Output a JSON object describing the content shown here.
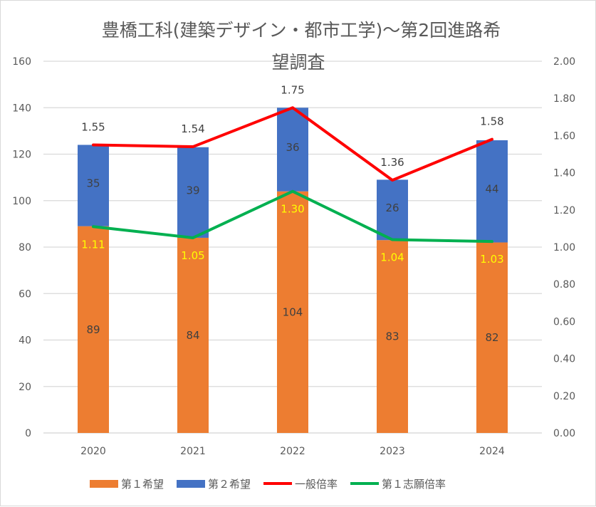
{
  "chart_data": {
    "type": "bar",
    "title": "豊橋工科(建築デザイン・都市工学)～第2回進路希望調査",
    "categories": [
      "2020",
      "2021",
      "2022",
      "2023",
      "2024"
    ],
    "series": [
      {
        "name": "第１希望",
        "kind": "bar",
        "axis": "left",
        "color": "#ED7D31",
        "label_color": "#404040",
        "values": [
          89,
          84,
          104,
          83,
          82
        ]
      },
      {
        "name": "第２希望",
        "kind": "bar",
        "axis": "left",
        "color": "#4472C4",
        "label_color": "#404040",
        "values": [
          35,
          39,
          36,
          26,
          44
        ]
      },
      {
        "name": "一般倍率",
        "kind": "line",
        "axis": "right",
        "color": "#FF0000",
        "label_color": "#404040",
        "labels": [
          "1.55",
          "1.54",
          "1.75",
          "1.36",
          "1.58"
        ],
        "values": [
          1.55,
          1.54,
          1.75,
          1.36,
          1.58
        ]
      },
      {
        "name": "第１志願倍率",
        "kind": "line",
        "axis": "right",
        "color": "#00B050",
        "label_color": "#FFFF00",
        "labels": [
          "1.11",
          "1.05",
          "1.30",
          "1.04",
          "1.03"
        ],
        "values": [
          1.11,
          1.05,
          1.3,
          1.04,
          1.03
        ]
      }
    ],
    "stacked": true,
    "ylim": [
      0,
      160
    ],
    "yticks": [
      "0",
      "20",
      "40",
      "60",
      "80",
      "100",
      "120",
      "140",
      "160"
    ],
    "y2lim": [
      0,
      2
    ],
    "y2ticks": [
      "0.00",
      "0.20",
      "0.40",
      "0.60",
      "0.80",
      "1.00",
      "1.20",
      "1.40",
      "1.60",
      "1.80",
      "2.00"
    ],
    "grid": true,
    "legend": "bottom"
  }
}
